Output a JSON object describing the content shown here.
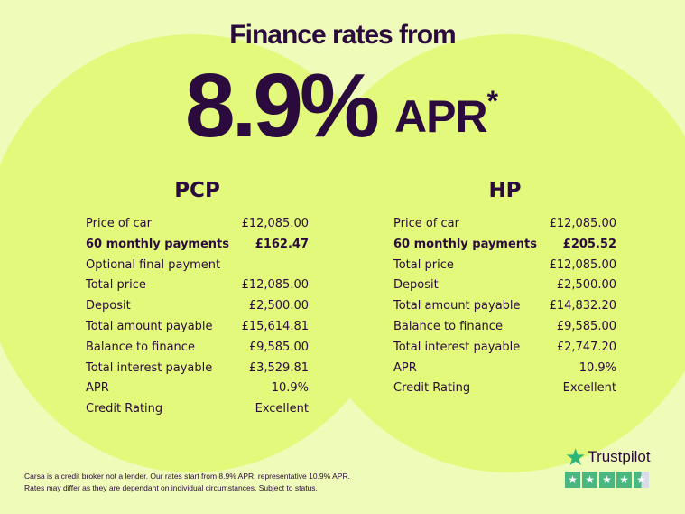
{
  "header": {
    "title": "Finance rates from",
    "rate": "8.9%",
    "apr": "APR",
    "asterisk": "*"
  },
  "pcp": {
    "heading": "PCP",
    "rows": [
      {
        "label": "Price of car",
        "value": "£12,085.00"
      },
      {
        "label": "60 monthly payments",
        "value": "£162.47",
        "bold": true
      },
      {
        "label": "Optional final payment",
        "value": ""
      },
      {
        "label": "Total price",
        "value": "£12,085.00"
      },
      {
        "label": "Deposit",
        "value": "£2,500.00"
      },
      {
        "label": "Total amount payable",
        "value": "£15,614.81"
      },
      {
        "label": "Balance to finance",
        "value": "£9,585.00"
      },
      {
        "label": "Total interest payable",
        "value": "£3,529.81"
      },
      {
        "label": "APR",
        "value": "10.9%"
      },
      {
        "label": "Credit Rating",
        "value": "Excellent"
      }
    ]
  },
  "hp": {
    "heading": "HP",
    "rows": [
      {
        "label": "Price of car",
        "value": "£12,085.00"
      },
      {
        "label": "60 monthly payments",
        "value": "£205.52",
        "bold": true
      },
      {
        "label": "Total price",
        "value": "£12,085.00"
      },
      {
        "label": "Deposit",
        "value": "£2,500.00"
      },
      {
        "label": "Total amount payable",
        "value": "£14,832.20"
      },
      {
        "label": "Balance to finance",
        "value": "£9,585.00"
      },
      {
        "label": "Total interest payable",
        "value": "£2,747.20"
      },
      {
        "label": "APR",
        "value": "10.9%"
      },
      {
        "label": "Credit Rating",
        "value": "Excellent"
      }
    ]
  },
  "disclaimer": {
    "line1": "Carsa is a credit broker not a lender. Our rates start from 8.9% APR, representative 10.9% APR.",
    "line2": "Rates may differ as they are dependant on individual circumstances. Subject to status."
  },
  "trustpilot": {
    "label": "Trustpilot",
    "rating_stars": 4.5,
    "max_stars": 5,
    "color": "#49b77f"
  },
  "colors": {
    "background": "#eefbb9",
    "circles": "#e3f97b",
    "text": "#2b0b3d"
  }
}
